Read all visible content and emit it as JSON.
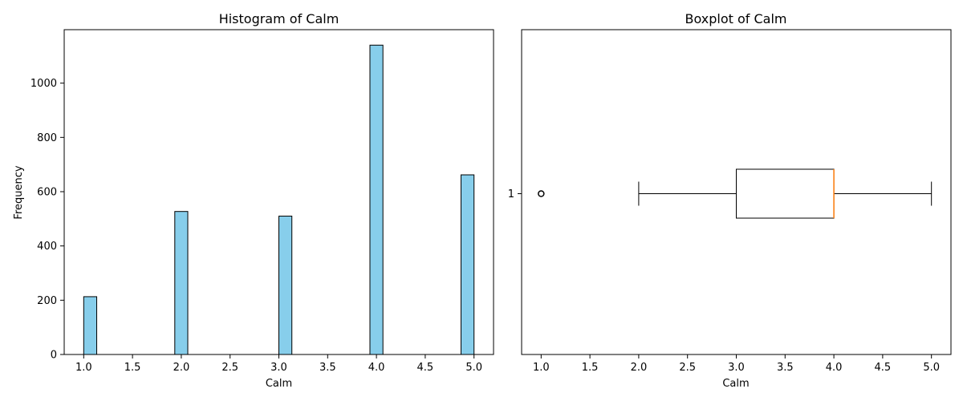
{
  "chart_data": [
    {
      "type": "bar",
      "title": "Histogram of Calm",
      "xlabel": "Calm",
      "ylabel": "Frequency",
      "xlim": [
        0.8,
        5.2
      ],
      "ylim": [
        0,
        1197
      ],
      "xticks": [
        1.0,
        1.5,
        2.0,
        2.5,
        3.0,
        3.5,
        4.0,
        4.5,
        5.0
      ],
      "xtick_labels": [
        "1.0",
        "1.5",
        "2.0",
        "2.5",
        "3.0",
        "3.5",
        "4.0",
        "4.5",
        "5.0"
      ],
      "yticks": [
        0,
        200,
        400,
        600,
        800,
        1000
      ],
      "ytick_labels": [
        "0",
        "200",
        "400",
        "600",
        "800",
        "1000"
      ],
      "bin_width": 0.1333,
      "bars": [
        {
          "x": 1.0,
          "value": 213
        },
        {
          "x": 1.9333,
          "value": 527
        },
        {
          "x": 3.0,
          "value": 510
        },
        {
          "x": 3.9333,
          "value": 1140
        },
        {
          "x": 4.8667,
          "value": 662
        }
      ],
      "colors": {
        "fill": "#87ceeb",
        "edge": "#000000"
      }
    },
    {
      "type": "boxplot",
      "title": "Boxplot of Calm",
      "xlabel": "Calm",
      "xlim": [
        0.8,
        5.2
      ],
      "xticks": [
        1.0,
        1.5,
        2.0,
        2.5,
        3.0,
        3.5,
        4.0,
        4.5,
        5.0
      ],
      "xtick_labels": [
        "1.0",
        "1.5",
        "2.0",
        "2.5",
        "3.0",
        "3.5",
        "4.0",
        "4.5",
        "5.0"
      ],
      "ytick_labels": [
        "1"
      ],
      "box": {
        "whisker_low": 2.0,
        "q1": 3.0,
        "median": 4.0,
        "q3": 4.0,
        "whisker_high": 5.0,
        "outliers": [
          1.0
        ]
      },
      "colors": {
        "median": "#ff7f0e",
        "box": "#000000"
      }
    }
  ]
}
